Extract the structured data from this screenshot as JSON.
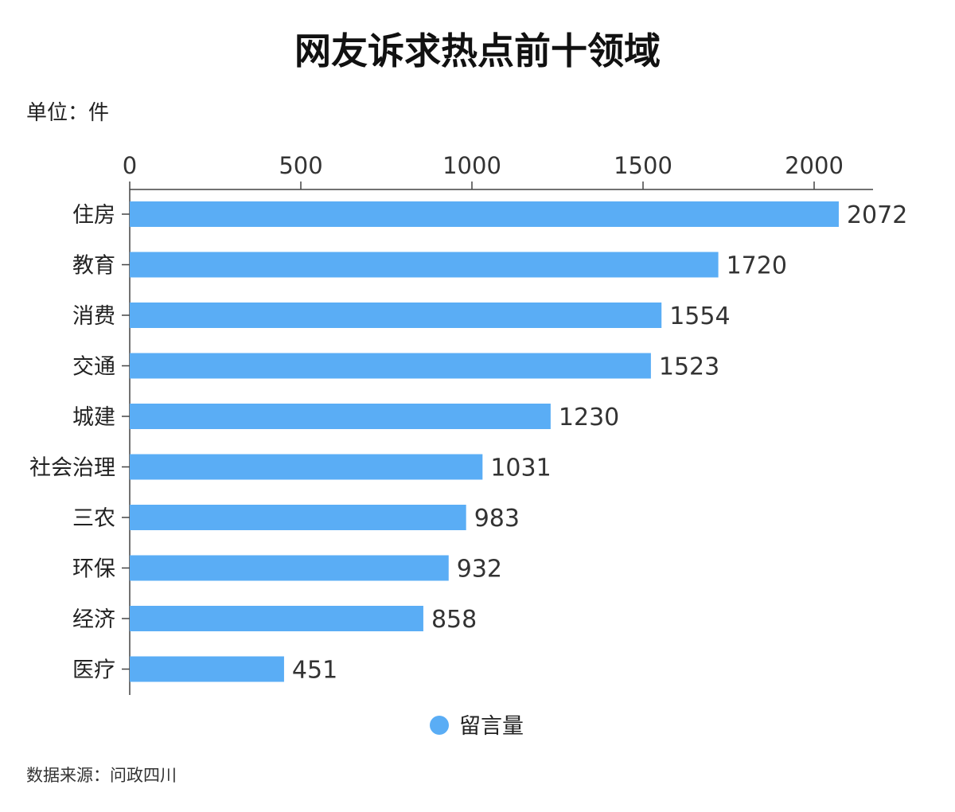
{
  "chart_data": {
    "type": "bar",
    "orientation": "horizontal",
    "title": "网友诉求热点前十领域",
    "unit_label": "单位：件",
    "categories": [
      "住房",
      "教育",
      "消费",
      "交通",
      "城建",
      "社会治理",
      "三农",
      "环保",
      "经济",
      "医疗"
    ],
    "series": [
      {
        "name": "留言量",
        "values": [
          2072,
          1720,
          1554,
          1523,
          1230,
          1031,
          983,
          932,
          858,
          451
        ],
        "color": "#5aadf5"
      }
    ],
    "xlim": [
      0,
      2170
    ],
    "x_ticks": [
      0,
      500,
      1000,
      1500,
      2000
    ],
    "x_axis_position": "top",
    "grid": false,
    "legend_position": "bottom-center",
    "data_labels": true,
    "source": "数据来源：问政四川"
  }
}
